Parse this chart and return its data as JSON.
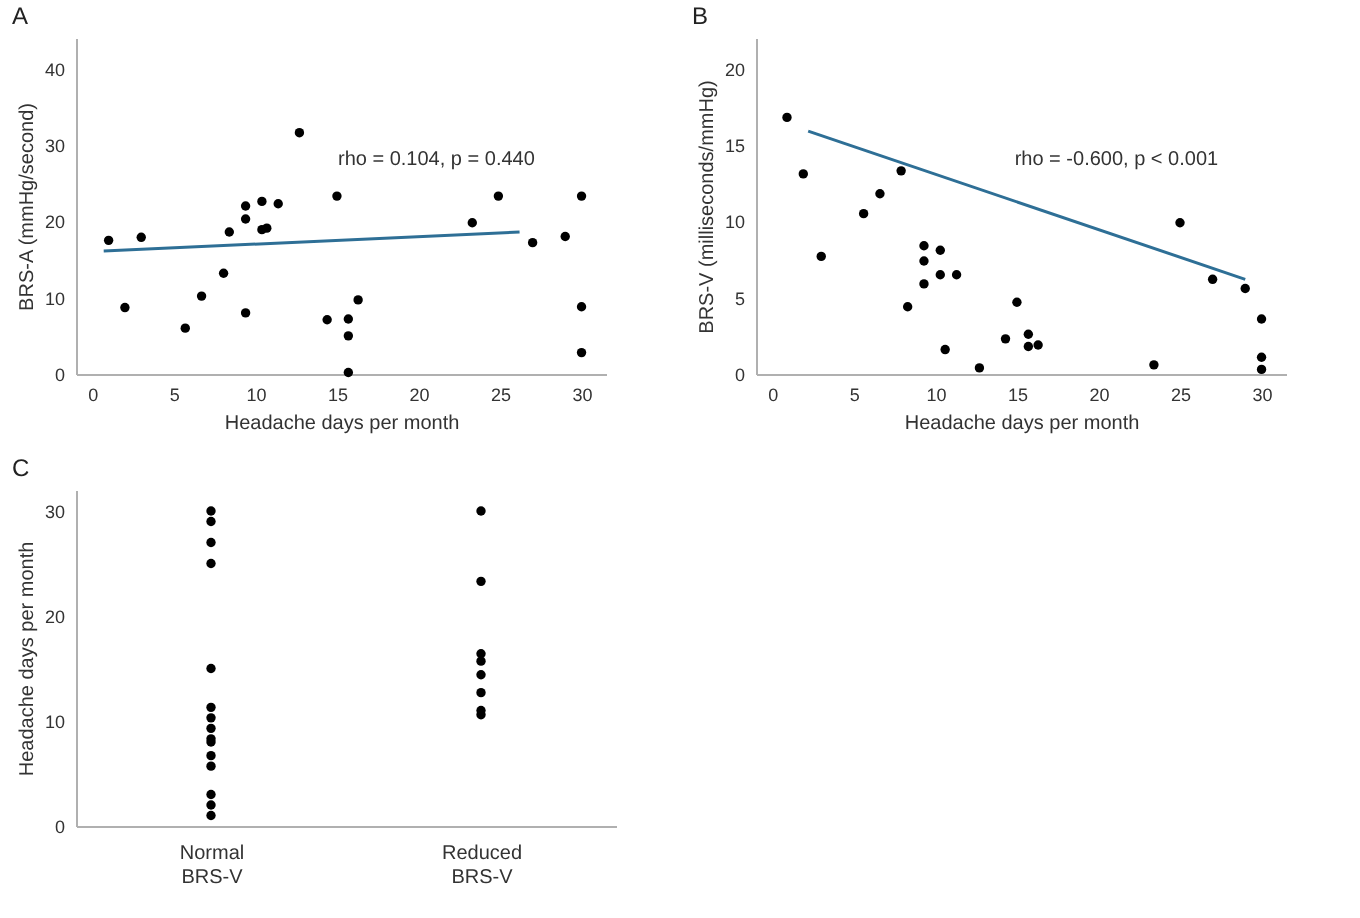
{
  "chart_data": [
    {
      "type": "scatter",
      "title": "A",
      "xlabel": "Headache days per month",
      "ylabel": "BRS-A (mmHg/second)",
      "xlim": [
        -1,
        31.5
      ],
      "ylim": [
        0,
        44
      ],
      "xticks": [
        0,
        5,
        10,
        15,
        20,
        25,
        30
      ],
      "yticks": [
        0,
        10,
        20,
        30,
        40
      ],
      "grid": false,
      "annotations": [
        "rho = 0.104, p = 0.440"
      ],
      "series": [
        {
          "marker": "circle",
          "color": "#000000",
          "x": [
            1,
            3,
            2,
            5.7,
            6.7,
            8.05,
            8.4,
            9.4,
            9.4,
            9.4,
            10.4,
            10.4,
            10.7,
            11.4,
            12.7,
            15,
            14.4,
            15.7,
            15.7,
            15.7,
            16.3,
            23.3,
            24.9,
            27,
            29,
            30,
            30,
            30
          ],
          "values": [
            17.5,
            17.9,
            8.7,
            6,
            10.2,
            13.2,
            18.6,
            22,
            20.3,
            8,
            22.6,
            18.9,
            19.1,
            22.3,
            31.6,
            23.3,
            7.1,
            7.2,
            5,
            0.2,
            9.7,
            19.8,
            23.3,
            17.2,
            18,
            23.3,
            8.8,
            2.8
          ]
        },
        {
          "type": "line",
          "color": "#2e6f96",
          "x": [
            0.7,
            26.2
          ],
          "values": [
            16.1,
            18.6
          ]
        }
      ]
    },
    {
      "type": "scatter",
      "title": "B",
      "xlabel": "Headache days per month",
      "ylabel": "BRS-V (milliseconds/mmHg)",
      "xlim": [
        -1,
        31.5
      ],
      "ylim": [
        0,
        22
      ],
      "xticks": [
        0,
        5,
        10,
        15,
        20,
        25,
        30
      ],
      "yticks": [
        0,
        5,
        10,
        15,
        20
      ],
      "grid": false,
      "annotations": [
        "rho = -0.600, p <  0.001"
      ],
      "series": [
        {
          "marker": "circle",
          "color": "#000000",
          "x": [
            0.9,
            1.9,
            3,
            5.6,
            6.6,
            7.9,
            8.3,
            9.3,
            9.3,
            9.3,
            10.3,
            10.3,
            10.6,
            11.3,
            12.7,
            14.3,
            15,
            15.7,
            15.7,
            16.3,
            23.4,
            25,
            27,
            29,
            30,
            30,
            30
          ],
          "values": [
            16.8,
            13.1,
            7.7,
            10.5,
            11.8,
            13.3,
            4.4,
            8.4,
            7.4,
            5.9,
            8.1,
            6.5,
            1.6,
            6.5,
            0.4,
            2.3,
            4.7,
            2.6,
            1.8,
            1.9,
            0.6,
            9.9,
            6.2,
            5.6,
            3.6,
            1.1,
            0.3
          ]
        },
        {
          "type": "line",
          "color": "#2e6f96",
          "x": [
            2.2,
            29
          ],
          "values": [
            15.9,
            6.2
          ]
        }
      ]
    },
    {
      "type": "scatter",
      "title": "C",
      "ylabel": "Headache days per month",
      "categories": [
        "Normal BRS-V",
        "Reduced BRS-V"
      ],
      "ylim": [
        0,
        32
      ],
      "yticks": [
        0,
        10,
        20,
        30
      ],
      "grid": false,
      "series": [
        {
          "marker": "circle",
          "color": "#000000",
          "x": [
            "Normal BRS-V",
            "Normal BRS-V",
            "Normal BRS-V",
            "Normal BRS-V",
            "Normal BRS-V",
            "Normal BRS-V",
            "Normal BRS-V",
            "Normal BRS-V",
            "Normal BRS-V",
            "Normal BRS-V",
            "Normal BRS-V",
            "Normal BRS-V",
            "Normal BRS-V",
            "Normal BRS-V",
            "Normal BRS-V",
            "Reduced BRS-V",
            "Reduced BRS-V",
            "Reduced BRS-V",
            "Reduced BRS-V",
            "Reduced BRS-V",
            "Reduced BRS-V",
            "Reduced BRS-V",
            "Reduced BRS-V"
          ],
          "values": [
            30,
            29,
            27,
            25,
            15,
            11.3,
            10.3,
            9.3,
            8.3,
            8,
            6.7,
            5.7,
            3,
            2,
            1,
            30,
            23.3,
            16.4,
            15.7,
            14.4,
            12.7,
            11,
            10.6
          ]
        }
      ]
    }
  ]
}
